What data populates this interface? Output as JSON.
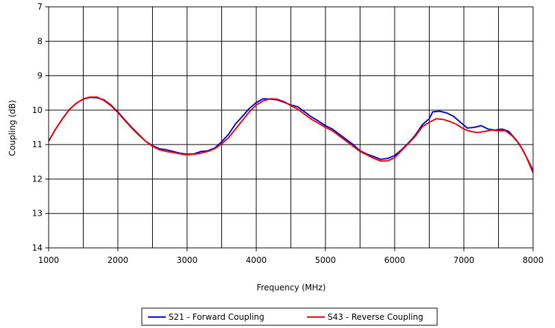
{
  "chart_data": {
    "type": "line",
    "xlabel": "Frequency (MHz)",
    "ylabel": "Coupling (dB)",
    "xlim": [
      1000,
      8000
    ],
    "ylim": [
      7,
      14
    ],
    "y_inverted": true,
    "xticks": [
      1000,
      2000,
      3000,
      4000,
      5000,
      6000,
      7000,
      8000
    ],
    "yticks": [
      7,
      8,
      9,
      10,
      11,
      12,
      13,
      14
    ],
    "x_minor_gridlines_every": 500,
    "grid": true,
    "legend_position": "bottom",
    "series": [
      {
        "name": "S21 - Forward Coupling",
        "color": "#0000dd",
        "points": [
          [
            1000,
            10.9
          ],
          [
            1100,
            10.55
          ],
          [
            1200,
            10.25
          ],
          [
            1300,
            9.98
          ],
          [
            1400,
            9.8
          ],
          [
            1500,
            9.68
          ],
          [
            1600,
            9.63
          ],
          [
            1700,
            9.64
          ],
          [
            1800,
            9.7
          ],
          [
            1900,
            9.85
          ],
          [
            2000,
            10.05
          ],
          [
            2100,
            10.28
          ],
          [
            2200,
            10.5
          ],
          [
            2300,
            10.7
          ],
          [
            2400,
            10.9
          ],
          [
            2500,
            11.03
          ],
          [
            2600,
            11.12
          ],
          [
            2700,
            11.15
          ],
          [
            2800,
            11.2
          ],
          [
            2900,
            11.25
          ],
          [
            3000,
            11.28
          ],
          [
            3100,
            11.27
          ],
          [
            3200,
            11.2
          ],
          [
            3300,
            11.18
          ],
          [
            3400,
            11.1
          ],
          [
            3500,
            10.92
          ],
          [
            3600,
            10.7
          ],
          [
            3700,
            10.4
          ],
          [
            3800,
            10.18
          ],
          [
            3900,
            9.95
          ],
          [
            4000,
            9.78
          ],
          [
            4100,
            9.67
          ],
          [
            4200,
            9.68
          ],
          [
            4300,
            9.7
          ],
          [
            4400,
            9.77
          ],
          [
            4500,
            9.85
          ],
          [
            4600,
            9.9
          ],
          [
            4700,
            10.05
          ],
          [
            4800,
            10.2
          ],
          [
            4900,
            10.32
          ],
          [
            5000,
            10.45
          ],
          [
            5100,
            10.55
          ],
          [
            5200,
            10.7
          ],
          [
            5300,
            10.85
          ],
          [
            5400,
            11.0
          ],
          [
            5500,
            11.18
          ],
          [
            5600,
            11.28
          ],
          [
            5700,
            11.35
          ],
          [
            5800,
            11.43
          ],
          [
            5900,
            11.4
          ],
          [
            6000,
            11.32
          ],
          [
            6100,
            11.15
          ],
          [
            6200,
            10.95
          ],
          [
            6300,
            10.72
          ],
          [
            6400,
            10.42
          ],
          [
            6500,
            10.25
          ],
          [
            6550,
            10.05
          ],
          [
            6650,
            10.03
          ],
          [
            6750,
            10.08
          ],
          [
            6850,
            10.18
          ],
          [
            6950,
            10.35
          ],
          [
            7050,
            10.52
          ],
          [
            7150,
            10.5
          ],
          [
            7250,
            10.45
          ],
          [
            7350,
            10.55
          ],
          [
            7450,
            10.58
          ],
          [
            7550,
            10.55
          ],
          [
            7650,
            10.62
          ],
          [
            7750,
            10.85
          ],
          [
            7850,
            11.15
          ],
          [
            7950,
            11.55
          ],
          [
            8000,
            11.75
          ]
        ]
      },
      {
        "name": "S43 - Reverse Coupling",
        "color": "#ee0000",
        "points": [
          [
            1000,
            10.9
          ],
          [
            1100,
            10.55
          ],
          [
            1200,
            10.25
          ],
          [
            1300,
            9.98
          ],
          [
            1400,
            9.8
          ],
          [
            1500,
            9.67
          ],
          [
            1600,
            9.62
          ],
          [
            1700,
            9.62
          ],
          [
            1800,
            9.72
          ],
          [
            1900,
            9.87
          ],
          [
            2000,
            10.07
          ],
          [
            2100,
            10.3
          ],
          [
            2200,
            10.52
          ],
          [
            2300,
            10.72
          ],
          [
            2400,
            10.9
          ],
          [
            2500,
            11.05
          ],
          [
            2600,
            11.15
          ],
          [
            2700,
            11.2
          ],
          [
            2800,
            11.23
          ],
          [
            2900,
            11.27
          ],
          [
            3000,
            11.3
          ],
          [
            3100,
            11.28
          ],
          [
            3200,
            11.25
          ],
          [
            3300,
            11.2
          ],
          [
            3400,
            11.12
          ],
          [
            3500,
            10.98
          ],
          [
            3600,
            10.8
          ],
          [
            3700,
            10.55
          ],
          [
            3800,
            10.3
          ],
          [
            3900,
            10.05
          ],
          [
            4000,
            9.85
          ],
          [
            4100,
            9.73
          ],
          [
            4200,
            9.67
          ],
          [
            4300,
            9.68
          ],
          [
            4400,
            9.75
          ],
          [
            4500,
            9.87
          ],
          [
            4600,
            9.97
          ],
          [
            4700,
            10.12
          ],
          [
            4800,
            10.27
          ],
          [
            4900,
            10.38
          ],
          [
            5000,
            10.5
          ],
          [
            5100,
            10.6
          ],
          [
            5200,
            10.75
          ],
          [
            5300,
            10.9
          ],
          [
            5400,
            11.05
          ],
          [
            5500,
            11.2
          ],
          [
            5600,
            11.3
          ],
          [
            5700,
            11.4
          ],
          [
            5800,
            11.48
          ],
          [
            5900,
            11.47
          ],
          [
            6000,
            11.38
          ],
          [
            6100,
            11.17
          ],
          [
            6200,
            10.97
          ],
          [
            6300,
            10.75
          ],
          [
            6400,
            10.48
          ],
          [
            6500,
            10.35
          ],
          [
            6600,
            10.25
          ],
          [
            6700,
            10.27
          ],
          [
            6800,
            10.33
          ],
          [
            6900,
            10.42
          ],
          [
            7000,
            10.55
          ],
          [
            7100,
            10.62
          ],
          [
            7200,
            10.65
          ],
          [
            7300,
            10.62
          ],
          [
            7400,
            10.58
          ],
          [
            7500,
            10.6
          ],
          [
            7600,
            10.6
          ],
          [
            7700,
            10.75
          ],
          [
            7800,
            10.98
          ],
          [
            7900,
            11.35
          ],
          [
            8000,
            11.82
          ]
        ]
      }
    ]
  }
}
